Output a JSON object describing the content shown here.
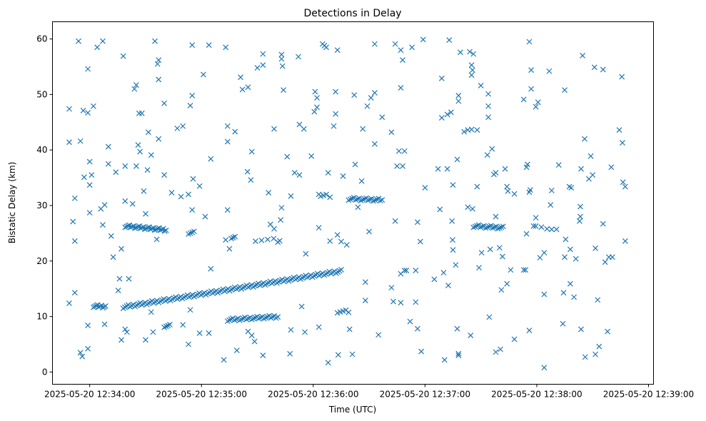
{
  "chart_data": {
    "type": "scatter",
    "title": "Detections in Delay",
    "xlabel": "Time (UTC)",
    "ylabel": "Bistatic Delay (km)",
    "x_units": "seconds after 2025-05-20 12:34:00",
    "xlim": [
      -20,
      302.7
    ],
    "ylim": [
      -2.2,
      63.1
    ],
    "grid": false,
    "marker": "x",
    "color": "#1f77b4",
    "xticks": [
      {
        "value": 0,
        "label": "2025-05-20 12:34:00"
      },
      {
        "value": 60,
        "label": "2025-05-20 12:35:00"
      },
      {
        "value": 120,
        "label": "2025-05-20 12:36:00"
      },
      {
        "value": 180,
        "label": "2025-05-20 12:37:00"
      },
      {
        "value": 240,
        "label": "2025-05-20 12:38:00"
      },
      {
        "value": 300,
        "label": "2025-05-20 12:39:00"
      }
    ],
    "yticks": [
      {
        "value": 0,
        "label": "0"
      },
      {
        "value": 10,
        "label": "10"
      },
      {
        "value": 20,
        "label": "20"
      },
      {
        "value": 30,
        "label": "30"
      },
      {
        "value": 40,
        "label": "40"
      },
      {
        "value": 50,
        "label": "50"
      },
      {
        "value": 60,
        "label": "60"
      }
    ],
    "tracks": [
      {
        "start": [
          18,
          11.7
        ],
        "end": [
          135,
          18.2
        ],
        "count": 130
      },
      {
        "start": [
          19,
          26.3
        ],
        "end": [
          41,
          25.6
        ],
        "count": 30
      },
      {
        "start": [
          2,
          11.9
        ],
        "end": [
          8.5,
          11.8
        ],
        "count": 10
      },
      {
        "start": [
          74,
          9.4
        ],
        "end": [
          101,
          10.0
        ],
        "count": 30
      },
      {
        "start": [
          139,
          31.2
        ],
        "end": [
          157,
          31.0
        ],
        "count": 20
      },
      {
        "start": [
          206,
          26.3
        ],
        "end": [
          222,
          26.0
        ],
        "count": 18
      },
      {
        "start": [
          53,
          25.1
        ],
        "end": [
          56,
          25.1
        ],
        "count": 4
      },
      {
        "start": [
          89,
          23.8
        ],
        "end": [
          102,
          23.8
        ],
        "count": 5
      },
      {
        "start": [
          133,
          10.9
        ],
        "end": [
          139,
          10.9
        ],
        "count": 5
      },
      {
        "start": [
          40,
          8.3
        ],
        "end": [
          43,
          8.3
        ],
        "count": 4
      },
      {
        "start": [
          76,
          24.3
        ],
        "end": [
          78,
          24.3
        ],
        "count": 3
      },
      {
        "start": [
          124,
          31.9
        ],
        "end": [
          127,
          31.9
        ],
        "count": 3
      }
    ],
    "points": [
      [
        -11,
        47.4
      ],
      [
        -11,
        41.4
      ],
      [
        -9,
        27.1
      ],
      [
        -8,
        31.3
      ],
      [
        -8,
        23.6
      ],
      [
        -8,
        14.3
      ],
      [
        -11,
        12.4
      ],
      [
        -6,
        59.6
      ],
      [
        -5,
        41.6
      ],
      [
        -5,
        3.5
      ],
      [
        -4,
        2.8
      ],
      [
        -3.5,
        47.1
      ],
      [
        -3,
        35.1
      ],
      [
        -1,
        54.6
      ],
      [
        -1,
        46.7
      ],
      [
        -1,
        8.4
      ],
      [
        -1,
        4.2
      ],
      [
        0,
        33.7
      ],
      [
        0,
        37.9
      ],
      [
        0,
        28.7
      ],
      [
        1,
        35.5
      ],
      [
        2,
        47.9
      ],
      [
        4,
        58.5
      ],
      [
        7,
        59.6
      ],
      [
        6,
        29.4
      ],
      [
        8,
        30.1
      ],
      [
        7,
        26.5
      ],
      [
        8,
        8.6
      ],
      [
        10,
        40.6
      ],
      [
        10,
        37.5
      ],
      [
        11.5,
        24.5
      ],
      [
        12.6,
        20.7
      ],
      [
        14,
        36
      ],
      [
        15.3,
        14.7
      ],
      [
        16,
        16.8
      ],
      [
        17,
        5.8
      ],
      [
        17,
        22.2
      ],
      [
        18,
        56.9
      ],
      [
        19,
        37.1
      ],
      [
        19,
        30.8
      ],
      [
        19,
        7.7
      ],
      [
        20,
        7.2
      ],
      [
        21,
        16.8
      ],
      [
        23,
        30.3
      ],
      [
        24,
        51
      ],
      [
        25,
        51.7
      ],
      [
        25,
        37.1
      ],
      [
        26,
        40.9
      ],
      [
        26.5,
        46.6
      ],
      [
        27,
        39.7
      ],
      [
        28,
        46.6
      ],
      [
        29,
        32.6
      ],
      [
        30,
        28.5
      ],
      [
        30,
        5.8
      ],
      [
        31,
        36.4
      ],
      [
        31.5,
        43.2
      ],
      [
        33,
        10.8
      ],
      [
        33,
        39.1
      ],
      [
        34,
        7.2
      ],
      [
        35,
        59.6
      ],
      [
        36.4,
        55.5
      ],
      [
        37,
        56.2
      ],
      [
        37,
        42
      ],
      [
        37,
        52.7
      ],
      [
        36,
        23.9
      ],
      [
        40,
        48.4
      ],
      [
        40,
        35.5
      ],
      [
        44,
        32.3
      ],
      [
        47,
        43.9
      ],
      [
        49,
        31.6
      ],
      [
        50,
        44.3
      ],
      [
        50,
        8.5
      ],
      [
        53,
        5
      ],
      [
        53,
        32
      ],
      [
        55,
        58.9
      ],
      [
        55,
        49.8
      ],
      [
        54,
        48
      ],
      [
        55.5,
        34.8
      ],
      [
        55,
        29.2
      ],
      [
        54,
        11.2
      ],
      [
        59,
        33.5
      ],
      [
        59,
        7
      ],
      [
        61,
        53.6
      ],
      [
        62,
        28
      ],
      [
        64,
        58.9
      ],
      [
        65,
        38.4
      ],
      [
        65,
        18.6
      ],
      [
        64,
        7
      ],
      [
        73,
        58.5
      ],
      [
        74,
        41.5
      ],
      [
        74,
        44.3
      ],
      [
        78,
        43.3
      ],
      [
        74,
        29.2
      ],
      [
        73,
        23.8
      ],
      [
        72,
        2.2
      ],
      [
        75,
        22.2
      ],
      [
        79,
        3.9
      ],
      [
        81,
        53.1
      ],
      [
        82,
        50.9
      ],
      [
        85,
        51.3
      ],
      [
        84.7,
        36.1
      ],
      [
        86.5,
        34.6
      ],
      [
        87,
        39.7
      ],
      [
        85,
        7.3
      ],
      [
        87,
        6.6
      ],
      [
        88.5,
        5.5
      ],
      [
        90,
        54.8
      ],
      [
        93,
        57.3
      ],
      [
        93,
        55.3
      ],
      [
        93,
        3
      ],
      [
        96,
        32.3
      ],
      [
        99,
        43.8
      ],
      [
        97,
        26.6
      ],
      [
        99,
        25.8
      ],
      [
        101,
        23.4
      ],
      [
        103,
        57.2
      ],
      [
        103,
        56.4
      ],
      [
        103.5,
        55.1
      ],
      [
        104,
        50.8
      ],
      [
        103,
        29.6
      ],
      [
        102.5,
        27.4
      ],
      [
        106,
        38.8
      ],
      [
        108,
        31.7
      ],
      [
        108,
        7.6
      ],
      [
        107.5,
        3.3
      ],
      [
        110,
        35.9
      ],
      [
        112,
        56.8
      ],
      [
        112.6,
        35.5
      ],
      [
        112.6,
        44.6
      ],
      [
        115,
        43.8
      ],
      [
        115.5,
        7.2
      ],
      [
        113.8,
        11.8
      ],
      [
        116,
        21.3
      ],
      [
        119,
        38.9
      ],
      [
        120.6,
        46.9
      ],
      [
        121,
        50.5
      ],
      [
        122,
        49.4
      ],
      [
        122,
        47.7
      ],
      [
        123,
        8.1
      ],
      [
        125,
        59.1
      ],
      [
        126,
        58.8
      ],
      [
        128,
        1.7
      ],
      [
        128,
        35.9
      ],
      [
        127,
        58.5
      ],
      [
        123,
        26
      ],
      [
        123,
        32
      ],
      [
        129,
        31.5
      ],
      [
        129,
        23.6
      ],
      [
        131,
        44.3
      ],
      [
        132,
        46.5
      ],
      [
        132,
        50.5
      ],
      [
        133,
        58
      ],
      [
        133.4,
        3.1
      ],
      [
        133,
        24.7
      ],
      [
        135,
        23.5
      ],
      [
        136,
        35.3
      ],
      [
        138,
        22.9
      ],
      [
        139.5,
        7.7
      ],
      [
        141,
        3.2
      ],
      [
        142,
        49.9
      ],
      [
        142.5,
        37.4
      ],
      [
        144,
        29.7
      ],
      [
        146,
        34.4
      ],
      [
        146.6,
        43.8
      ],
      [
        148,
        16.2
      ],
      [
        149,
        47.9
      ],
      [
        151,
        49.4
      ],
      [
        153,
        59.1
      ],
      [
        153,
        41.1
      ],
      [
        153,
        50.3
      ],
      [
        155,
        6.7
      ],
      [
        157,
        45.9
      ],
      [
        148,
        12.9
      ],
      [
        150,
        25.3
      ],
      [
        162,
        43.2
      ],
      [
        162,
        15.2
      ],
      [
        163,
        12.7
      ],
      [
        164,
        59.1
      ],
      [
        164,
        27.2
      ],
      [
        165,
        37.1
      ],
      [
        167,
        51.2
      ],
      [
        166,
        39.8
      ],
      [
        168,
        56.2
      ],
      [
        167,
        58
      ],
      [
        167,
        12.5
      ],
      [
        168,
        37.1
      ],
      [
        169,
        39.8
      ],
      [
        167,
        17.7
      ],
      [
        169,
        18.3
      ],
      [
        170,
        18.3
      ],
      [
        172,
        9.1
      ],
      [
        173,
        58.5
      ],
      [
        175,
        12.6
      ],
      [
        175,
        18.3
      ],
      [
        176,
        27
      ],
      [
        176,
        7.8
      ],
      [
        178,
        3.7
      ],
      [
        179,
        59.9
      ],
      [
        177.5,
        23.5
      ],
      [
        180,
        33.2
      ],
      [
        185,
        16.7
      ],
      [
        187,
        36.6
      ],
      [
        189,
        45.8
      ],
      [
        189,
        52.9
      ],
      [
        188,
        29.3
      ],
      [
        190,
        17.9
      ],
      [
        190.5,
        2.2
      ],
      [
        192,
        36.6
      ],
      [
        192,
        46.4
      ],
      [
        192.5,
        15.6
      ],
      [
        193,
        59.8
      ],
      [
        194,
        46.8
      ],
      [
        194.5,
        27.2
      ],
      [
        195,
        33.7
      ],
      [
        194.8,
        23.8
      ],
      [
        195,
        22
      ],
      [
        196.5,
        19.3
      ],
      [
        197.3,
        7.8
      ],
      [
        198,
        3
      ],
      [
        198,
        3.3
      ],
      [
        199,
        57.6
      ],
      [
        198,
        49.8
      ],
      [
        197.3,
        38.3
      ],
      [
        198,
        48.8
      ],
      [
        201,
        43.3
      ],
      [
        203,
        29.7
      ],
      [
        203,
        43.6
      ],
      [
        205,
        43.7
      ],
      [
        204,
        57.7
      ],
      [
        205,
        55.3
      ],
      [
        205.5,
        54.4
      ],
      [
        205,
        53.5
      ],
      [
        206,
        57.3
      ],
      [
        204.5,
        6.6
      ],
      [
        205.5,
        29.4
      ],
      [
        208,
        43.6
      ],
      [
        208,
        33.4
      ],
      [
        209,
        18.8
      ],
      [
        210,
        51.6
      ],
      [
        210.4,
        21.5
      ],
      [
        213.5,
        39.1
      ],
      [
        214,
        50.1
      ],
      [
        214,
        47.9
      ],
      [
        214.5,
        9.9
      ],
      [
        215,
        22.1
      ],
      [
        214,
        45.9
      ],
      [
        216,
        40.2
      ],
      [
        217,
        35.6
      ],
      [
        218,
        28
      ],
      [
        218,
        35.9
      ],
      [
        218,
        3.6
      ],
      [
        220,
        22.4
      ],
      [
        220.5,
        4.1
      ],
      [
        221,
        14.8
      ],
      [
        221.6,
        20.8
      ],
      [
        223,
        36.6
      ],
      [
        224,
        33.4
      ],
      [
        224,
        15.9
      ],
      [
        224.5,
        32.6
      ],
      [
        226,
        18.4
      ],
      [
        228,
        32.1
      ],
      [
        228,
        5.9
      ],
      [
        233,
        18.4
      ],
      [
        234,
        18.4
      ],
      [
        233,
        49.1
      ],
      [
        234.5,
        36.9
      ],
      [
        235,
        37.4
      ],
      [
        234.5,
        24.9
      ],
      [
        236,
        59.5
      ],
      [
        236,
        32.4
      ],
      [
        236,
        7.5
      ],
      [
        237,
        54.4
      ],
      [
        236.5,
        32.8
      ],
      [
        237,
        51
      ],
      [
        238.3,
        26.3
      ],
      [
        239.5,
        47.8
      ],
      [
        239.5,
        27.8
      ],
      [
        239.5,
        26.3
      ],
      [
        240.7,
        48.6
      ],
      [
        241.7,
        20.6
      ],
      [
        242.5,
        26.1
      ],
      [
        244,
        0.8
      ],
      [
        244,
        14
      ],
      [
        244,
        21.5
      ],
      [
        245.5,
        25.8
      ],
      [
        246.7,
        54.2
      ],
      [
        247.4,
        30.1
      ],
      [
        248,
        32.7
      ],
      [
        248,
        25.7
      ],
      [
        250.6,
        25.7
      ],
      [
        251.8,
        37.3
      ],
      [
        254,
        8.7
      ],
      [
        255,
        20.7
      ],
      [
        254.4,
        14.3
      ],
      [
        255,
        50.8
      ],
      [
        255.5,
        23.9
      ],
      [
        257.5,
        33.4
      ],
      [
        258,
        15.9
      ],
      [
        258,
        22.1
      ],
      [
        258.5,
        33.2
      ],
      [
        260,
        13.5
      ],
      [
        261,
        20.4
      ],
      [
        263,
        27.2
      ],
      [
        263.4,
        28
      ],
      [
        263.4,
        29.8
      ],
      [
        263.8,
        7.7
      ],
      [
        263.8,
        36.6
      ],
      [
        264.6,
        57
      ],
      [
        265.7,
        42
      ],
      [
        266,
        2.7
      ],
      [
        268,
        34.8
      ],
      [
        269,
        38.9
      ],
      [
        270,
        35.5
      ],
      [
        271,
        54.9
      ],
      [
        271.5,
        22.3
      ],
      [
        271.5,
        3.2
      ],
      [
        272.7,
        13
      ],
      [
        273.5,
        4.6
      ],
      [
        275.6,
        54.5
      ],
      [
        275.6,
        26.7
      ],
      [
        276.7,
        19.8
      ],
      [
        278,
        7.3
      ],
      [
        278.7,
        20.7
      ],
      [
        280,
        36.9
      ],
      [
        280.6,
        20.7
      ],
      [
        284.3,
        43.6
      ],
      [
        285.7,
        53.2
      ],
      [
        286,
        41.3
      ],
      [
        286.3,
        34.2
      ],
      [
        287.5,
        33.4
      ],
      [
        287.5,
        23.6
      ]
    ]
  }
}
